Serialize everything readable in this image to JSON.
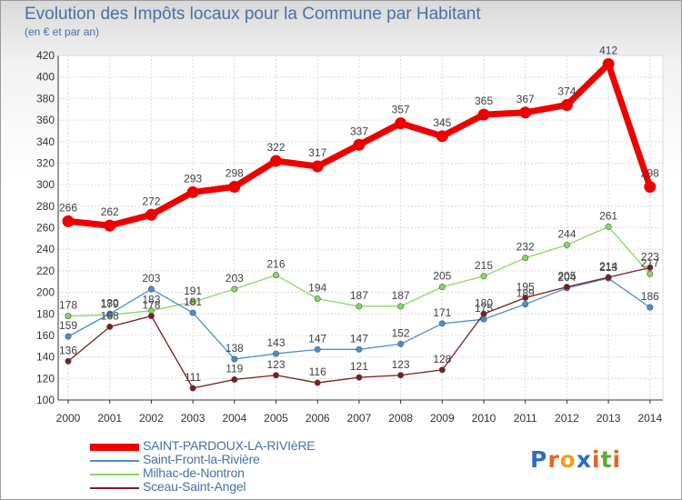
{
  "title": "Evolution des Impôts locaux pour la Commune par Habitant",
  "subtitle": "(en € et par an)",
  "logo": {
    "letters": [
      "P",
      "r",
      "o",
      "x",
      "i",
      "t",
      "i"
    ],
    "colors": [
      "#2c6fbf",
      "#e8641e",
      "#f2a019",
      "#2c6fbf",
      "#e8641e",
      "#5aab32",
      "#e8641e"
    ]
  },
  "chart_data": {
    "type": "line",
    "title": "Evolution des Impôts locaux pour la Commune par Habitant",
    "subtitle": "(en € et par an)",
    "categories": [
      "2000",
      "2001",
      "2002",
      "2003",
      "2004",
      "2005",
      "2006",
      "2007",
      "2008",
      "2009",
      "2010",
      "2011",
      "2012",
      "2013",
      "2014"
    ],
    "ylim": [
      100,
      420
    ],
    "yticks": [
      "100",
      "120",
      "140",
      "160",
      "180",
      "200",
      "220",
      "240",
      "260",
      "280",
      "300",
      "320",
      "340",
      "360",
      "380",
      "400",
      "420"
    ],
    "grid": true,
    "legend": "bottom",
    "series": [
      {
        "name": "SAINT-PARDOUX-LA-RIVIèRE",
        "color": "#ee0000",
        "values": [
          266,
          262,
          272,
          293,
          298,
          322,
          317,
          337,
          357,
          345,
          365,
          367,
          374,
          412,
          298
        ],
        "labels": [
          "266",
          "262",
          "272",
          "293",
          "298",
          "322",
          "317",
          "337",
          "357",
          "345",
          "365",
          "367",
          "374",
          "412",
          "298"
        ]
      },
      {
        "name": "Saint-Front-la-Rivière",
        "color": "#4a8fd0",
        "values": [
          159,
          180,
          203,
          181,
          138,
          143,
          147,
          147,
          152,
          171,
          175,
          189,
          204,
          213,
          186
        ],
        "labels": [
          "159",
          "180",
          "203",
          "181",
          "138",
          "143",
          "147",
          "147",
          "152",
          "171",
          "175",
          "189",
          "204",
          "213",
          "186"
        ]
      },
      {
        "name": "Milhac-de-Nontron",
        "color": "#88d860",
        "values": [
          178,
          179,
          183,
          191,
          203,
          216,
          194,
          187,
          187,
          205,
          215,
          232,
          244,
          261,
          217
        ],
        "labels": [
          "178",
          "179",
          "183",
          "191",
          "203",
          "216",
          "194",
          "187",
          "187",
          "205",
          "215",
          "232",
          "244",
          "261",
          "217"
        ]
      },
      {
        "name": "Sceau-Saint-Angel",
        "color": "#7a1e1e",
        "values": [
          136,
          168,
          178,
          111,
          119,
          123,
          116,
          121,
          123,
          128,
          180,
          195,
          205,
          214,
          223
        ],
        "labels": [
          "136",
          "168",
          "178",
          "111",
          "119",
          "123",
          "116",
          "121",
          "123",
          "128",
          "180",
          "195",
          "205",
          "214",
          "223"
        ]
      }
    ]
  }
}
